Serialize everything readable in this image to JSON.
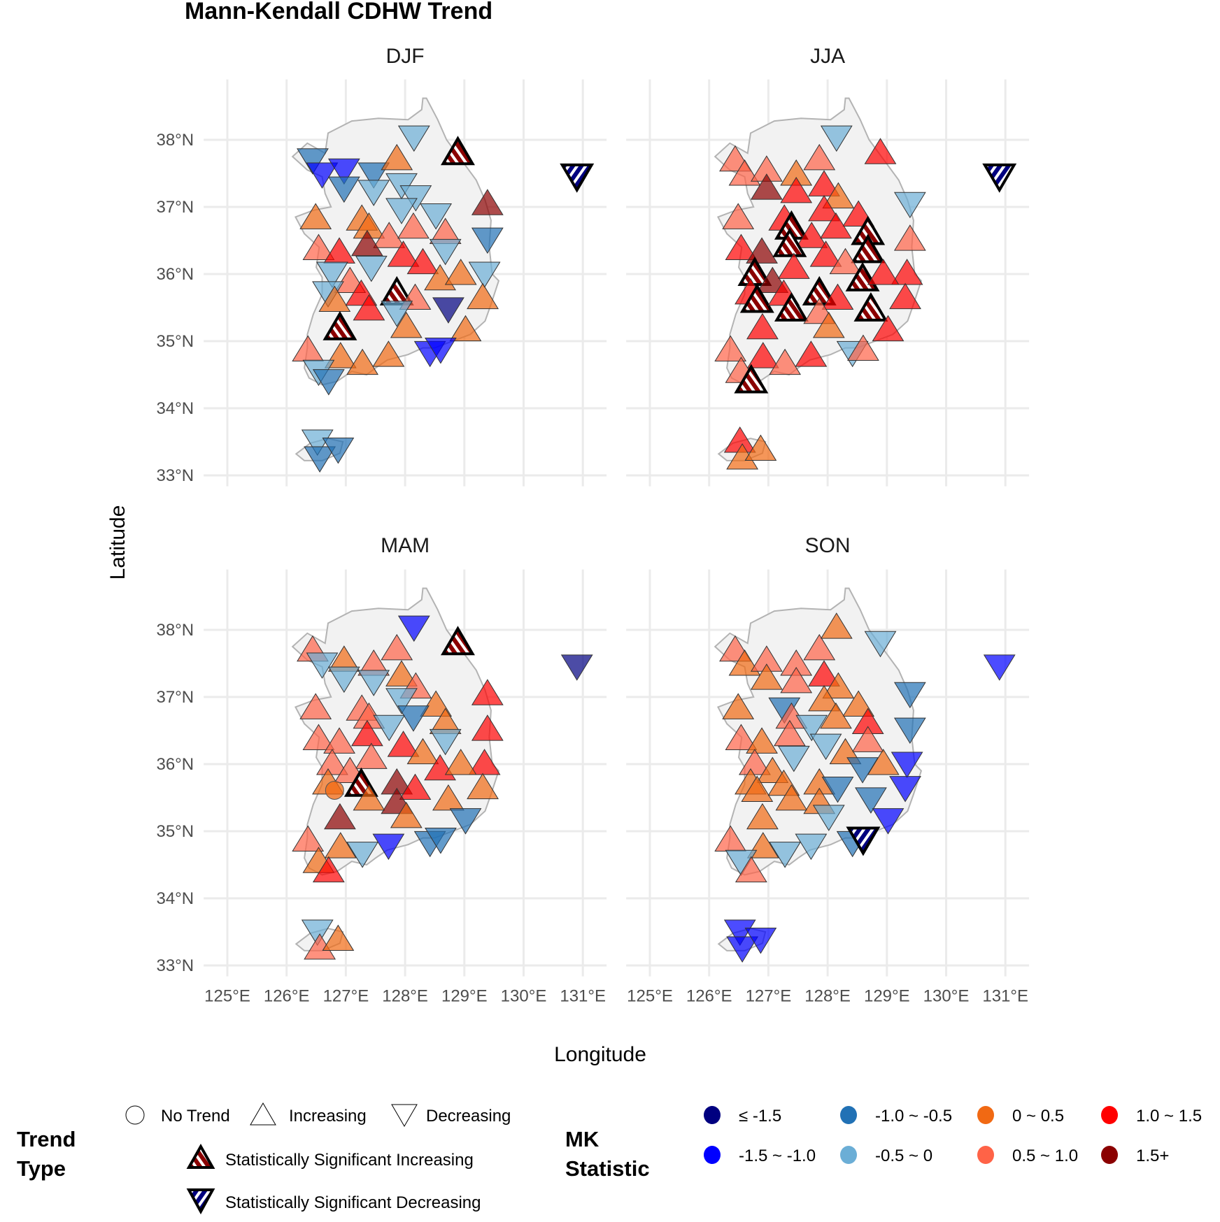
{
  "chart_data": {
    "type": "scatter",
    "title": "Mann-Kendall CDHW Trend",
    "xlabel": "Longitude",
    "ylabel": "Latitude",
    "xlim": [
      124.6,
      131.4
    ],
    "ylim": [
      32.9,
      38.9
    ],
    "x_ticks": [
      "125°E",
      "126°E",
      "127°E",
      "128°E",
      "129°E",
      "130°E",
      "131°E"
    ],
    "x_tick_values": [
      125,
      126,
      127,
      128,
      129,
      130,
      131
    ],
    "y_ticks": [
      "33°N",
      "34°N",
      "35°N",
      "36°N",
      "37°N",
      "38°N"
    ],
    "y_tick_values": [
      33,
      34,
      35,
      36,
      37,
      38
    ],
    "grid": true,
    "legend_position": "bottom",
    "trend_legend": {
      "title": "Trend Type",
      "items": [
        {
          "code": "N",
          "label": "No Trend",
          "shape": "circle"
        },
        {
          "code": "I",
          "label": "Increasing",
          "shape": "triangle-up"
        },
        {
          "code": "D",
          "label": "Decreasing",
          "shape": "triangle-down"
        },
        {
          "code": "SI",
          "label": "Statistically Significant Increasing",
          "shape": "triangle-up-striped"
        },
        {
          "code": "SD",
          "label": "Statistically Significant Decreasing",
          "shape": "triangle-down-striped"
        }
      ]
    },
    "mk_legend": {
      "title": "MK Statistic",
      "classes": [
        {
          "code": 1,
          "label": "≤ -1.5",
          "color": "#000080"
        },
        {
          "code": 2,
          "label": "-1.5 ~ -1.0",
          "color": "#0000ff"
        },
        {
          "code": 3,
          "label": "-1.0 ~ -0.5",
          "color": "#2171b5"
        },
        {
          "code": 4,
          "label": "-0.5 ~ 0",
          "color": "#6baed6"
        },
        {
          "code": 5,
          "label": "0 ~ 0.5",
          "color": "#f16913"
        },
        {
          "code": 6,
          "label": "0.5 ~ 1.0",
          "color": "#ff6347"
        },
        {
          "code": 7,
          "label": "1.0 ~ 1.5",
          "color": "#ff0000"
        },
        {
          "code": 8,
          "label": "1.5+",
          "color": "#8b0000"
        }
      ]
    },
    "stations": [
      [
        126.44,
        37.7
      ],
      [
        126.6,
        37.49
      ],
      [
        126.97,
        37.55
      ],
      [
        126.97,
        37.28
      ],
      [
        127.47,
        37.49
      ],
      [
        127.47,
        37.23
      ],
      [
        127.86,
        37.72
      ],
      [
        128.15,
        38.04
      ],
      [
        128.89,
        37.81
      ],
      [
        130.9,
        37.46
      ],
      [
        127.94,
        37.33
      ],
      [
        128.18,
        37.15
      ],
      [
        127.94,
        36.96
      ],
      [
        128.52,
        36.88
      ],
      [
        129.39,
        37.05
      ],
      [
        126.49,
        36.84
      ],
      [
        127.27,
        36.82
      ],
      [
        127.39,
        36.7
      ],
      [
        127.73,
        36.56
      ],
      [
        128.14,
        36.7
      ],
      [
        128.68,
        36.62
      ],
      [
        129.39,
        36.52
      ],
      [
        128.68,
        36.35
      ],
      [
        126.54,
        36.38
      ],
      [
        126.89,
        36.33
      ],
      [
        127.36,
        36.44
      ],
      [
        127.43,
        36.1
      ],
      [
        127.97,
        36.28
      ],
      [
        128.3,
        36.17
      ],
      [
        129.34,
        36.01
      ],
      [
        126.77,
        36.01
      ],
      [
        127.07,
        35.89
      ],
      [
        126.7,
        35.72
      ],
      [
        126.81,
        35.61
      ],
      [
        127.26,
        35.7
      ],
      [
        127.39,
        35.48
      ],
      [
        127.86,
        35.72
      ],
      [
        128.17,
        35.64
      ],
      [
        127.86,
        35.43
      ],
      [
        128.59,
        35.93
      ],
      [
        128.94,
        36.01
      ],
      [
        128.73,
        35.48
      ],
      [
        129.31,
        35.65
      ],
      [
        126.9,
        35.2
      ],
      [
        128.02,
        35.22
      ],
      [
        129.02,
        35.17
      ],
      [
        128.42,
        34.83
      ],
      [
        128.6,
        34.88
      ],
      [
        126.36,
        34.87
      ],
      [
        126.91,
        34.77
      ],
      [
        127.28,
        34.67
      ],
      [
        127.72,
        34.79
      ],
      [
        126.54,
        34.55
      ],
      [
        126.71,
        34.41
      ],
      [
        126.52,
        33.51
      ],
      [
        126.56,
        33.26
      ],
      [
        126.87,
        33.39
      ]
    ],
    "panels": [
      {
        "season": "DJF",
        "trend": [
          "D",
          "D",
          "D",
          "D",
          "D",
          "D",
          "I",
          "D",
          "SI",
          "SD",
          "D",
          "D",
          "D",
          "D",
          "I",
          "I",
          "I",
          "I",
          "I",
          "I",
          "I",
          "D",
          "D",
          "I",
          "I",
          "I",
          "D",
          "I",
          "I",
          "D",
          "D",
          "I",
          "D",
          "I",
          "I",
          "I",
          "SI",
          "I",
          "D",
          "I",
          "I",
          "D",
          "I",
          "SI",
          "I",
          "I",
          "D",
          "D",
          "I",
          "I",
          "I",
          "I",
          "D",
          "D",
          "D",
          "D",
          "D"
        ],
        "mk_class": [
          3,
          2,
          2,
          3,
          3,
          4,
          5,
          4,
          8,
          1,
          4,
          4,
          4,
          4,
          8,
          5,
          5,
          5,
          6,
          6,
          6,
          3,
          4,
          6,
          7,
          8,
          4,
          7,
          7,
          4,
          4,
          6,
          4,
          5,
          7,
          7,
          8,
          6,
          4,
          5,
          5,
          1,
          5,
          8,
          5,
          5,
          2,
          2,
          6,
          5,
          5,
          5,
          4,
          3,
          4,
          3,
          3
        ]
      },
      {
        "season": "JJA",
        "trend": [
          "I",
          "I",
          "I",
          "I",
          "I",
          "I",
          "I",
          "D",
          "I",
          "SD",
          "I",
          "I",
          "I",
          "I",
          "D",
          "I",
          "I",
          "SI",
          "I",
          "I",
          "SI",
          "I",
          "SI",
          "I",
          "I",
          "SI",
          "I",
          "I",
          "I",
          "I",
          "SI",
          "I",
          "I",
          "SI",
          "I",
          "SI",
          "SI",
          "I",
          "I",
          "SI",
          "I",
          "SI",
          "I",
          "I",
          "I",
          "I",
          "D",
          "I",
          "I",
          "I",
          "I",
          "I",
          "I",
          "SI",
          "I",
          "I",
          "I"
        ],
        "mk_class": [
          6,
          6,
          6,
          8,
          5,
          7,
          6,
          4,
          7,
          1,
          7,
          5,
          7,
          7,
          4,
          6,
          7,
          8,
          7,
          7,
          8,
          6,
          8,
          7,
          8,
          8,
          7,
          7,
          6,
          7,
          8,
          8,
          7,
          8,
          7,
          8,
          8,
          7,
          6,
          8,
          7,
          8,
          7,
          7,
          5,
          7,
          4,
          6,
          6,
          7,
          6,
          7,
          6,
          8,
          7,
          5,
          5
        ]
      },
      {
        "season": "MAM",
        "trend": [
          "I",
          "D",
          "I",
          "D",
          "I",
          "D",
          "I",
          "D",
          "SI",
          "D",
          "I",
          "I",
          "D",
          "I",
          "I",
          "I",
          "I",
          "I",
          "D",
          "D",
          "I",
          "I",
          "D",
          "I",
          "I",
          "I",
          "I",
          "I",
          "I",
          "I",
          "I",
          "I",
          "I",
          "N",
          "SI",
          "I",
          "I",
          "I",
          "I",
          "I",
          "I",
          "I",
          "I",
          "I",
          "I",
          "D",
          "D",
          "D",
          "I",
          "I",
          "D",
          "D",
          "I",
          "I",
          "D",
          "I",
          "I"
        ],
        "mk_class": [
          6,
          4,
          5,
          4,
          6,
          4,
          6,
          2,
          8,
          1,
          5,
          6,
          4,
          5,
          7,
          6,
          6,
          6,
          4,
          3,
          5,
          7,
          4,
          6,
          6,
          7,
          6,
          7,
          5,
          7,
          6,
          6,
          5,
          5,
          8,
          5,
          8,
          7,
          8,
          7,
          5,
          5,
          5,
          8,
          5,
          3,
          3,
          3,
          6,
          5,
          4,
          2,
          5,
          7,
          4,
          6,
          5
        ]
      },
      {
        "season": "SON",
        "trend": [
          "I",
          "I",
          "I",
          "I",
          "I",
          "I",
          "I",
          "I",
          "D",
          "D",
          "I",
          "I",
          "I",
          "I",
          "D",
          "I",
          "D",
          "I",
          "D",
          "I",
          "I",
          "D",
          "I",
          "I",
          "I",
          "I",
          "D",
          "D",
          "I",
          "D",
          "I",
          "I",
          "I",
          "I",
          "I",
          "I",
          "I",
          "D",
          "I",
          "D",
          "I",
          "D",
          "D",
          "I",
          "D",
          "D",
          "D",
          "SD",
          "I",
          "I",
          "D",
          "D",
          "D",
          "I",
          "D",
          "D",
          "D"
        ],
        "mk_class": [
          6,
          5,
          6,
          5,
          6,
          6,
          6,
          5,
          4,
          2,
          7,
          5,
          5,
          5,
          3,
          5,
          3,
          6,
          4,
          5,
          7,
          3,
          6,
          6,
          5,
          6,
          4,
          4,
          5,
          2,
          6,
          5,
          5,
          5,
          5,
          5,
          5,
          3,
          5,
          3,
          5,
          3,
          2,
          5,
          4,
          2,
          3,
          1,
          6,
          5,
          4,
          4,
          4,
          6,
          2,
          2,
          2
        ]
      }
    ]
  }
}
